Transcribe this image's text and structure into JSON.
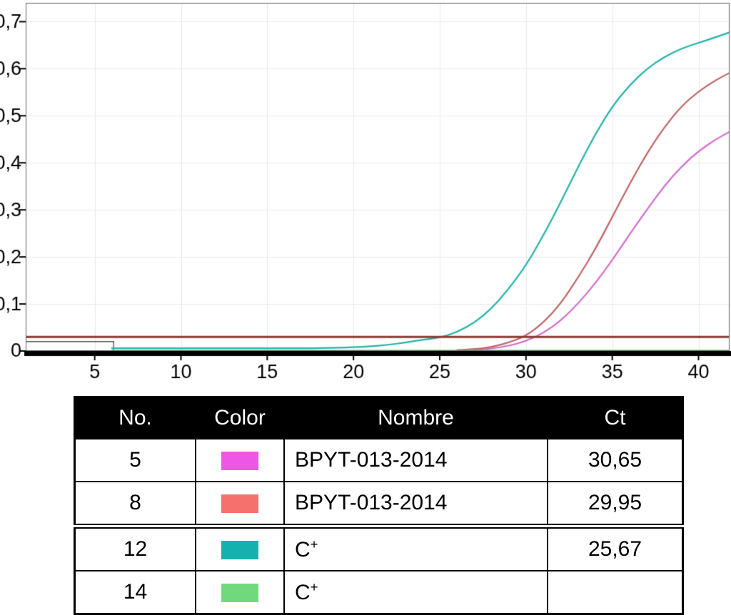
{
  "chart_data": {
    "type": "line",
    "title": "",
    "xlabel": "",
    "ylabel": "",
    "xlim": [
      1,
      41.8
    ],
    "ylim": [
      0,
      0.74
    ],
    "grid": true,
    "x_ticks": [
      5,
      10,
      15,
      20,
      25,
      30,
      35,
      40
    ],
    "y_ticks": [
      {
        "value": 0,
        "label": "0"
      },
      {
        "value": 0.1,
        "label": "0,1"
      },
      {
        "value": 0.2,
        "label": "0,2"
      },
      {
        "value": 0.3,
        "label": "0,3"
      },
      {
        "value": 0.4,
        "label": "0,4"
      },
      {
        "value": 0.5,
        "label": "0,5"
      },
      {
        "value": 0.6,
        "label": "0,6"
      },
      {
        "value": 0.7,
        "label": "0,7"
      }
    ],
    "threshold": {
      "y": 0.03,
      "color": "#8a3b34"
    },
    "baseline_marker": {
      "y": 0.02,
      "x_from": 1,
      "x_to": 6.1,
      "color": "#555555"
    },
    "series": [
      {
        "name": "5 BPYT-013-2014",
        "color": "#d36ccc",
        "points": [
          [
            27,
            0.002
          ],
          [
            28,
            0.005
          ],
          [
            29,
            0.011
          ],
          [
            30,
            0.021
          ],
          [
            31,
            0.038
          ],
          [
            32,
            0.064
          ],
          [
            33,
            0.1
          ],
          [
            34,
            0.143
          ],
          [
            35,
            0.193
          ],
          [
            36,
            0.248
          ],
          [
            37,
            0.3
          ],
          [
            38,
            0.35
          ],
          [
            39,
            0.392
          ],
          [
            40,
            0.425
          ],
          [
            41,
            0.45
          ],
          [
            42,
            0.47
          ]
        ]
      },
      {
        "name": "8 BPYT-013-2014",
        "color": "#c06264",
        "points": [
          [
            26,
            0.002
          ],
          [
            27,
            0.004
          ],
          [
            28,
            0.008
          ],
          [
            29,
            0.018
          ],
          [
            30,
            0.032
          ],
          [
            31,
            0.06
          ],
          [
            32,
            0.1
          ],
          [
            33,
            0.155
          ],
          [
            34,
            0.215
          ],
          [
            35,
            0.285
          ],
          [
            36,
            0.355
          ],
          [
            37,
            0.42
          ],
          [
            38,
            0.475
          ],
          [
            39,
            0.52
          ],
          [
            40,
            0.552
          ],
          [
            41,
            0.576
          ],
          [
            42,
            0.595
          ]
        ]
      },
      {
        "name": "12 C+",
        "color": "#1fb3ac",
        "points": [
          [
            6,
            0.006
          ],
          [
            10,
            0.006
          ],
          [
            14,
            0.006
          ],
          [
            17,
            0.006
          ],
          [
            18,
            0.006
          ],
          [
            19,
            0.007
          ],
          [
            20,
            0.008
          ],
          [
            21,
            0.01
          ],
          [
            22,
            0.013
          ],
          [
            23,
            0.018
          ],
          [
            24,
            0.024
          ],
          [
            25,
            0.028
          ],
          [
            26,
            0.04
          ],
          [
            27,
            0.06
          ],
          [
            28,
            0.09
          ],
          [
            29,
            0.132
          ],
          [
            30,
            0.182
          ],
          [
            31,
            0.245
          ],
          [
            32,
            0.315
          ],
          [
            33,
            0.39
          ],
          [
            34,
            0.46
          ],
          [
            35,
            0.52
          ],
          [
            36,
            0.565
          ],
          [
            37,
            0.6
          ],
          [
            38,
            0.625
          ],
          [
            39,
            0.643
          ],
          [
            40,
            0.655
          ],
          [
            41,
            0.667
          ],
          [
            42,
            0.68
          ]
        ]
      },
      {
        "name": "14 C+",
        "color": "#6fd97f",
        "points": [
          [
            6,
            0.001
          ],
          [
            20,
            0.001
          ],
          [
            30,
            0.001
          ],
          [
            42,
            0.001
          ]
        ]
      }
    ]
  },
  "table": {
    "columns": [
      "No.",
      "Color",
      "Nombre",
      "Ct"
    ],
    "rows": [
      {
        "no": "5",
        "color": "#ee56e5",
        "nombre": "BPYT-013-2014",
        "nombre_sup": "",
        "ct": "30,65",
        "group_start": false
      },
      {
        "no": "8",
        "color": "#f4716d",
        "nombre": "BPYT-013-2014",
        "nombre_sup": "",
        "ct": "29,95",
        "group_start": false
      },
      {
        "no": "12",
        "color": "#13b2ae",
        "nombre": "C",
        "nombre_sup": "+",
        "ct": "25,67",
        "group_start": true
      },
      {
        "no": "14",
        "color": "#70d87d",
        "nombre": "C",
        "nombre_sup": "+",
        "ct": "",
        "group_start": false
      }
    ]
  }
}
